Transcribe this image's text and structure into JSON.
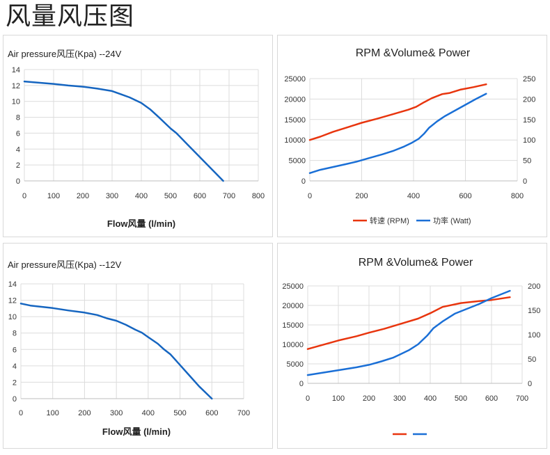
{
  "page": {
    "title": "风量风压图"
  },
  "chart_data": [
    {
      "id": "pressure-24v",
      "type": "line",
      "title": "Air pressure风压(Kpa)  --24V",
      "xlabel": "Flow风量  (l/min)",
      "ylabel": "",
      "xlim": [
        0,
        800
      ],
      "ylim": [
        0,
        14
      ],
      "xticks": [
        0,
        100,
        200,
        300,
        400,
        500,
        600,
        700,
        800
      ],
      "yticks": [
        0,
        2,
        4,
        6,
        8,
        10,
        12,
        14
      ],
      "grid": true,
      "series": [
        {
          "name": "Air pressure",
          "color": "#1565c0",
          "x": [
            0,
            50,
            100,
            150,
            200,
            250,
            300,
            330,
            360,
            400,
            430,
            460,
            500,
            520,
            560,
            600,
            640,
            680
          ],
          "y": [
            12.5,
            12.35,
            12.2,
            12.0,
            11.85,
            11.6,
            11.3,
            10.9,
            10.5,
            9.8,
            9.0,
            8.0,
            6.6,
            6.0,
            4.5,
            3.0,
            1.5,
            0
          ]
        }
      ]
    },
    {
      "id": "rpm-power-24v",
      "type": "line",
      "title": "RPM &Volume& Power",
      "xlim": [
        0,
        800
      ],
      "ylim": [
        0,
        25000
      ],
      "y2lim": [
        0,
        250
      ],
      "xticks": [
        0,
        200,
        400,
        600,
        800
      ],
      "yticks": [
        0,
        5000,
        10000,
        15000,
        20000,
        25000
      ],
      "y2ticks": [
        0,
        50,
        100,
        150,
        200,
        250
      ],
      "grid": true,
      "legend_position": "bottom",
      "series": [
        {
          "name": "转速 (RPM)",
          "axis": "left",
          "color": "#e8350e",
          "x": [
            0,
            40,
            90,
            150,
            200,
            260,
            320,
            380,
            410,
            440,
            470,
            510,
            540,
            580,
            630,
            680
          ],
          "y": [
            10000,
            10800,
            12000,
            13200,
            14200,
            15200,
            16300,
            17400,
            18100,
            19200,
            20200,
            21200,
            21500,
            22300,
            22900,
            23600
          ]
        },
        {
          "name": "功率 (Watt)",
          "axis": "right",
          "color": "#1a6fd6",
          "x": [
            0,
            40,
            90,
            140,
            180,
            230,
            280,
            320,
            360,
            390,
            420,
            440,
            460,
            490,
            520,
            560,
            600,
            640,
            680
          ],
          "y": [
            19,
            27,
            34,
            41,
            47,
            56,
            65,
            73,
            83,
            92,
            103,
            115,
            130,
            145,
            158,
            172,
            186,
            200,
            213
          ]
        }
      ]
    },
    {
      "id": "pressure-12v",
      "type": "line",
      "title": "Air pressure风压(Kpa)  --12V",
      "xlabel": "Flow风量  (l/min)",
      "ylabel": "",
      "xlim": [
        0,
        700
      ],
      "ylim": [
        0,
        14
      ],
      "xticks": [
        0,
        100,
        200,
        300,
        400,
        500,
        600,
        700
      ],
      "yticks": [
        0,
        2,
        4,
        6,
        8,
        10,
        12,
        14
      ],
      "grid": true,
      "series": [
        {
          "name": "Air pressure",
          "color": "#1565c0",
          "x": [
            0,
            30,
            100,
            150,
            200,
            240,
            270,
            300,
            330,
            360,
            380,
            400,
            430,
            450,
            470,
            500,
            530,
            560,
            600
          ],
          "y": [
            11.6,
            11.35,
            11.05,
            10.75,
            10.5,
            10.2,
            9.8,
            9.5,
            9.0,
            8.4,
            8.05,
            7.5,
            6.7,
            6.0,
            5.4,
            4.1,
            2.8,
            1.5,
            0
          ]
        }
      ]
    },
    {
      "id": "rpm-power-12v",
      "type": "line",
      "title": "RPM &Volume& Power",
      "xlim": [
        0,
        700
      ],
      "ylim": [
        0,
        25000
      ],
      "y2lim": [
        0,
        200
      ],
      "xticks": [
        0,
        100,
        200,
        300,
        400,
        500,
        600,
        700
      ],
      "yticks": [
        0,
        5000,
        10000,
        15000,
        20000,
        25000
      ],
      "y2ticks": [
        0,
        50,
        100,
        150,
        200
      ],
      "grid": true,
      "legend_position": "bottom",
      "legend_labels_visible": false,
      "series": [
        {
          "name": "RPM",
          "axis": "left",
          "color": "#e8350e",
          "x": [
            0,
            50,
            100,
            160,
            200,
            250,
            300,
            360,
            400,
            440,
            500,
            560,
            600,
            660
          ],
          "y": [
            8800,
            9900,
            11000,
            12100,
            13000,
            14000,
            15200,
            16600,
            18000,
            19600,
            20600,
            21100,
            21400,
            22100
          ]
        },
        {
          "name": "Power",
          "axis": "right",
          "color": "#1a6fd6",
          "x": [
            0,
            50,
            100,
            160,
            200,
            240,
            280,
            300,
            330,
            360,
            390,
            410,
            440,
            480,
            520,
            560,
            600,
            660
          ],
          "y": [
            17,
            22,
            27,
            33,
            38,
            45,
            53,
            59,
            68,
            80,
            98,
            113,
            127,
            143,
            153,
            163,
            175,
            190
          ]
        }
      ]
    }
  ]
}
